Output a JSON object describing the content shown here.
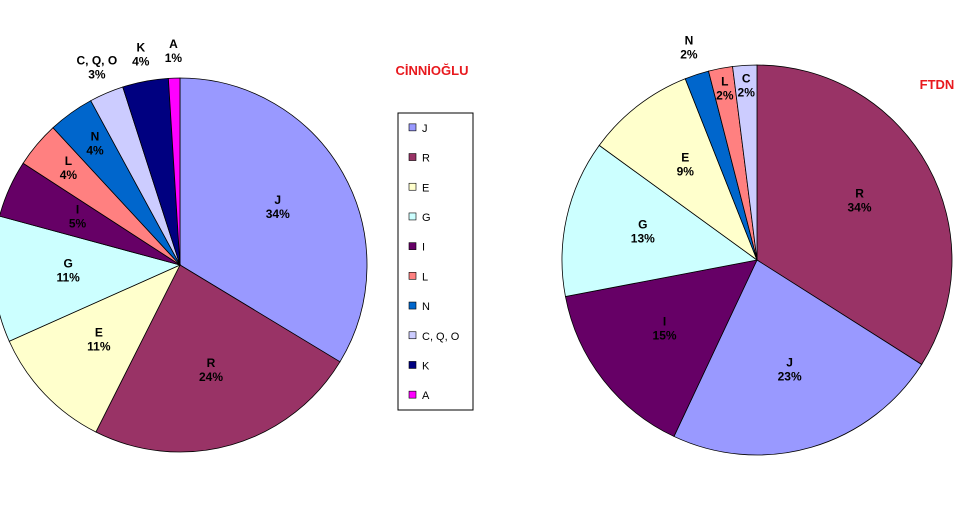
{
  "chart_data": [
    {
      "type": "pie",
      "title": "CİNNİOĞLU",
      "legend": "right",
      "categories": [
        "J",
        "R",
        "E",
        "G",
        "I",
        "L",
        "N",
        "C, Q, O",
        "K",
        "A"
      ],
      "values": [
        34,
        24,
        11,
        11,
        5,
        4,
        4,
        3,
        4,
        1
      ],
      "value_labels": [
        "34%",
        "24%",
        "11%",
        "11%",
        "5%",
        "4%",
        "4%",
        "3%",
        "4%",
        "1%"
      ],
      "colors": [
        "#9999ff",
        "#993366",
        "#ffffcc",
        "#ccffff",
        "#660066",
        "#ff8080",
        "#0066cc",
        "#ccccff",
        "#000080",
        "#ff00ff"
      ]
    },
    {
      "type": "pie",
      "title": "FTDN",
      "categories": [
        "R",
        "J",
        "I",
        "G",
        "E",
        "N",
        "L",
        "C"
      ],
      "values": [
        34,
        23,
        15,
        13,
        9,
        2,
        2,
        2
      ],
      "value_labels": [
        "34%",
        "23%",
        "15%",
        "13%",
        "9%",
        "2%",
        "2%",
        "2%"
      ],
      "colors": [
        "#993366",
        "#9999ff",
        "#660066",
        "#ccffff",
        "#ffffcc",
        "#0066cc",
        "#ff8080",
        "#ccccff"
      ]
    }
  ]
}
